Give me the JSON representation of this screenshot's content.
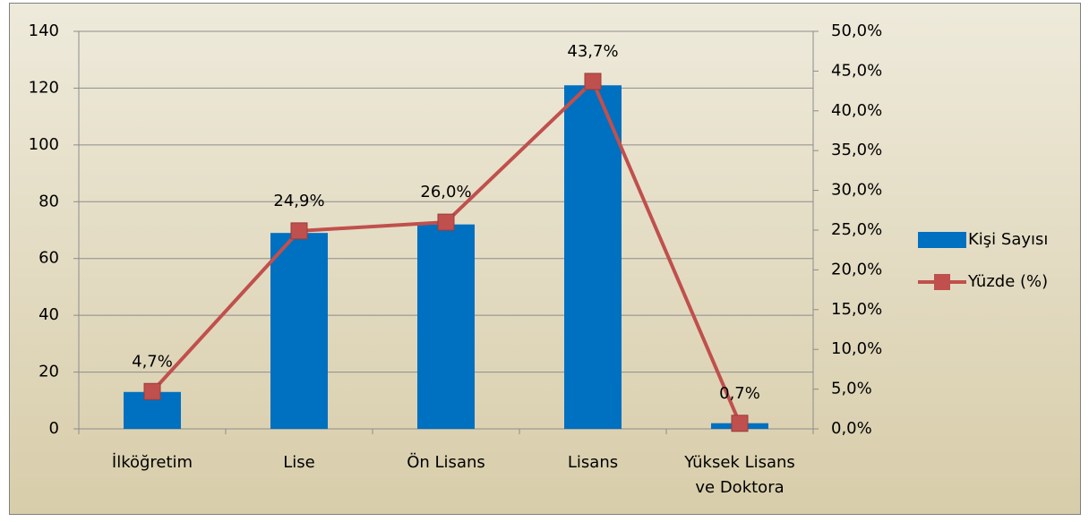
{
  "chart_data": {
    "type": "bar",
    "categories": [
      "İlköğretim",
      "Lise",
      "Ön Lisans",
      "Lisans",
      "Yüksek Lisans ve Doktora"
    ],
    "series": [
      {
        "name": "Kişi Sayısı",
        "type": "bar",
        "color": "#0070c0",
        "values": [
          13,
          69,
          72,
          121,
          2
        ]
      },
      {
        "name": "Yüzde (%)",
        "type": "line",
        "axis": "y2",
        "color": "#c0504d",
        "values": [
          4.7,
          24.9,
          26.0,
          43.7,
          0.7
        ],
        "value_labels": [
          "4,7%",
          "24,9%",
          "26,0%",
          "43,7%",
          "0,7%"
        ]
      }
    ],
    "ylim": [
      0,
      140
    ],
    "yticks": [
      0,
      20,
      40,
      60,
      80,
      100,
      120,
      140
    ],
    "y2lim": [
      0,
      50
    ],
    "y2ticks": [
      {
        "value": 0,
        "label": "0,0%"
      },
      {
        "value": 5,
        "label": "5,0%"
      },
      {
        "value": 10,
        "label": "10,0%"
      },
      {
        "value": 15,
        "label": "15,0%"
      },
      {
        "value": 20,
        "label": "20,0%"
      },
      {
        "value": 25,
        "label": "25,0%"
      },
      {
        "value": 30,
        "label": "30,0%"
      },
      {
        "value": 35,
        "label": "35,0%"
      },
      {
        "value": 40,
        "label": "40,0%"
      },
      {
        "value": 45,
        "label": "45,0%"
      },
      {
        "value": 50,
        "label": "50,0%"
      }
    ],
    "grid": true,
    "legend": "right"
  }
}
